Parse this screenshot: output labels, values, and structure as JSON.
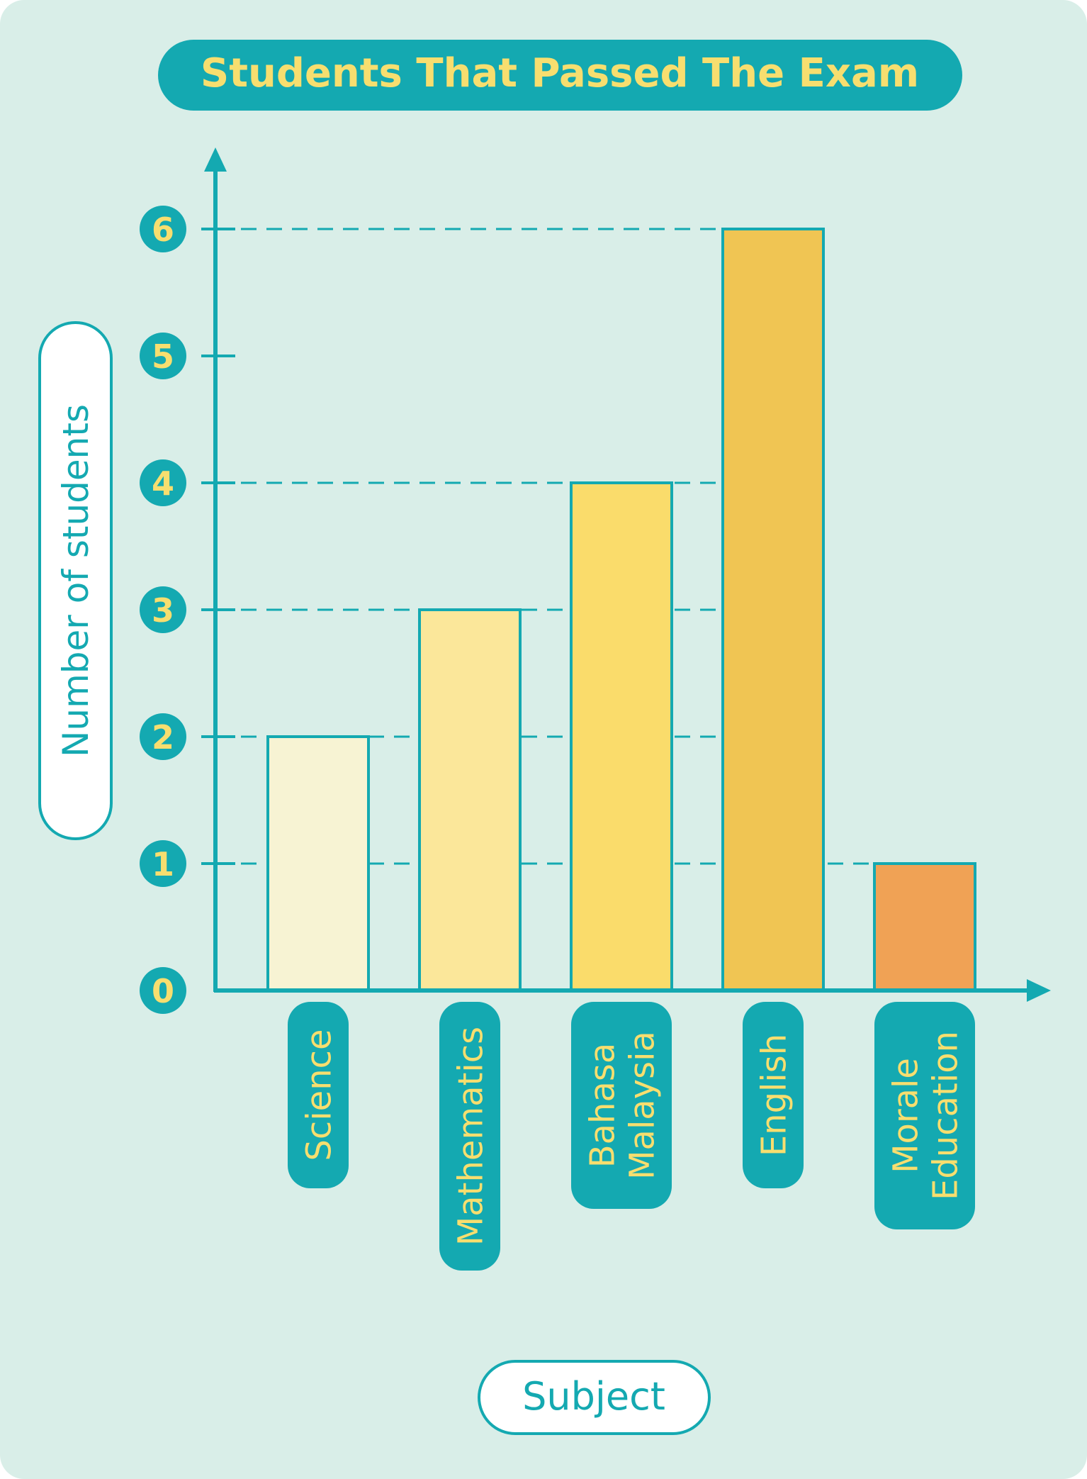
{
  "colors": {
    "background": "#d9eee8",
    "accent": "#14a9b1",
    "label_text": "#f7de6f",
    "pill_bg": "#ffffff"
  },
  "chart_data": {
    "type": "bar",
    "title": "Students That Passed The Exam",
    "xlabel": "Subject",
    "ylabel": "Number of students",
    "categories": [
      [
        "Science"
      ],
      [
        "Mathematics"
      ],
      [
        "Bahasa",
        "Malaysia"
      ],
      [
        "English"
      ],
      [
        "Morale",
        "Education"
      ]
    ],
    "values": [
      2,
      3,
      4,
      6,
      1
    ],
    "bar_colors": [
      "#f7f3d3",
      "#fbe79a",
      "#fadc6b",
      "#f0c553",
      "#f0a255"
    ],
    "yticks": [
      0,
      1,
      2,
      3,
      4,
      5,
      6
    ],
    "ylim": [
      0,
      6
    ],
    "dashed_guides_at": [
      1,
      2,
      3,
      4,
      6
    ],
    "grid": false,
    "legend": "none"
  }
}
